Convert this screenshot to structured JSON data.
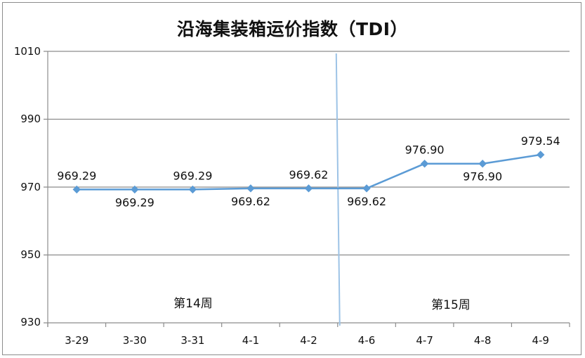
{
  "chart_data": {
    "type": "line",
    "title": "沿海集装箱运价指数（TDI）",
    "xlabel": "",
    "ylabel": "",
    "categories": [
      "3-29",
      "3-30",
      "3-31",
      "4-1",
      "4-2",
      "4-6",
      "4-7",
      "4-8",
      "4-9"
    ],
    "series": [
      {
        "values": [
          969.29,
          969.29,
          969.29,
          969.62,
          969.62,
          969.62,
          976.9,
          976.9,
          979.54
        ]
      }
    ],
    "data_labels": [
      "969.29",
      "969.29",
      "969.29",
      "969.62",
      "969.62",
      "969.62",
      "976.90",
      "976.90",
      "979.54"
    ],
    "ylim": [
      930,
      1010
    ],
    "yticks": [
      "1010",
      "990",
      "970",
      "950",
      "930"
    ],
    "grid": true,
    "legend": "none",
    "week_divider_after": "4-2",
    "week_labels": [
      "第14周",
      "第15周"
    ],
    "line_color": "#5b9bd5",
    "divider_color": "#9dc3e6",
    "grid_color": "#8c8c8c"
  }
}
